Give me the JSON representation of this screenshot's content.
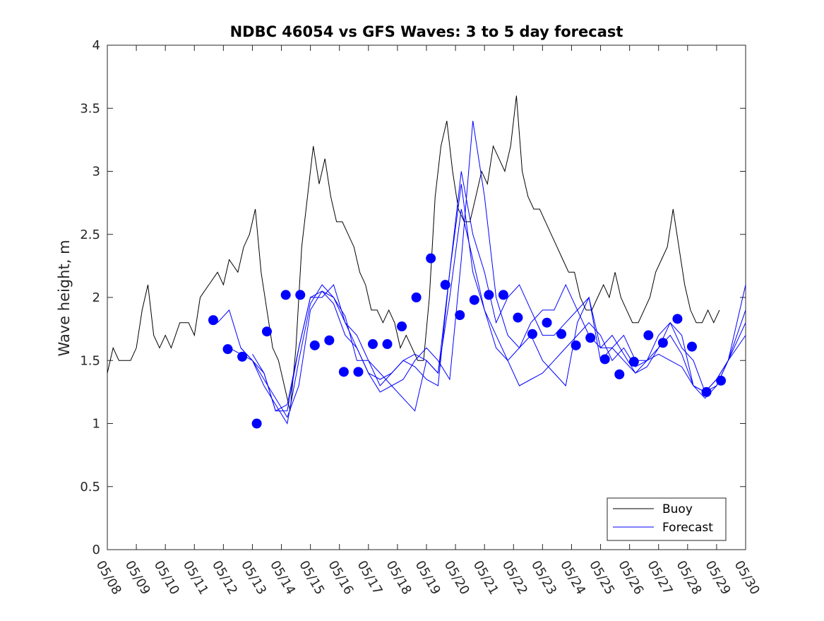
{
  "chart_data": {
    "type": "line",
    "title": "NDBC 46054 vs GFS Waves: 3 to 5 day forecast",
    "xlabel": "",
    "ylabel": "Wave height, m",
    "xlim": [
      0,
      22
    ],
    "ylim": [
      0,
      4
    ],
    "xticks": [
      "05/08",
      "05/09",
      "05/10",
      "05/11",
      "05/12",
      "05/13",
      "05/14",
      "05/15",
      "05/16",
      "05/17",
      "05/18",
      "05/19",
      "05/20",
      "05/21",
      "05/22",
      "05/23",
      "05/24",
      "05/25",
      "05/26",
      "05/27",
      "05/28",
      "05/29",
      "05/30"
    ],
    "yticks": [
      0,
      0.5,
      1,
      1.5,
      2,
      2.5,
      3,
      3.5,
      4
    ],
    "yticklabels": [
      "0",
      "0.5",
      "1",
      "1.5",
      "2",
      "2.5",
      "3",
      "3.5",
      "4"
    ],
    "grid": false,
    "legend_position": "bottom-right",
    "colors": {
      "buoy": "#000000",
      "forecast": "#0000ff"
    },
    "series": [
      {
        "name": "Buoy",
        "style": "line",
        "x": [
          0,
          0.2,
          0.4,
          0.6,
          0.8,
          1.0,
          1.2,
          1.4,
          1.6,
          1.8,
          2.0,
          2.2,
          2.5,
          2.8,
          3.0,
          3.2,
          3.5,
          3.8,
          4.0,
          4.2,
          4.5,
          4.7,
          4.9,
          5.1,
          5.3,
          5.5,
          5.7,
          5.9,
          6.1,
          6.3,
          6.5,
          6.7,
          6.9,
          7.1,
          7.3,
          7.5,
          7.7,
          7.9,
          8.1,
          8.3,
          8.5,
          8.7,
          8.9,
          9.1,
          9.3,
          9.5,
          9.7,
          9.9,
          10.1,
          10.3,
          10.5,
          10.7,
          10.9,
          11.1,
          11.3,
          11.5,
          11.7,
          11.9,
          12.1,
          12.3,
          12.5,
          12.7,
          12.9,
          13.1,
          13.3,
          13.5,
          13.7,
          13.9,
          14.1,
          14.3,
          14.5,
          14.7,
          14.9,
          15.1,
          15.3,
          15.5,
          15.7,
          15.9,
          16.1,
          16.3,
          16.5,
          16.7,
          16.9,
          17.1,
          17.3,
          17.5,
          17.7,
          17.9,
          18.1,
          18.3,
          18.5,
          18.7,
          18.9,
          19.1,
          19.3,
          19.5,
          19.7,
          19.9,
          20.1,
          20.3,
          20.5,
          20.7,
          20.9,
          21.1
        ],
        "values": [
          1.4,
          1.6,
          1.5,
          1.5,
          1.5,
          1.6,
          1.9,
          2.1,
          1.7,
          1.6,
          1.7,
          1.6,
          1.8,
          1.8,
          1.7,
          2.0,
          2.1,
          2.2,
          2.1,
          2.3,
          2.2,
          2.4,
          2.5,
          2.7,
          2.2,
          1.9,
          1.6,
          1.5,
          1.3,
          1.1,
          1.6,
          2.4,
          2.8,
          3.2,
          2.9,
          3.1,
          2.8,
          2.6,
          2.6,
          2.5,
          2.4,
          2.2,
          2.1,
          1.9,
          1.9,
          1.8,
          1.9,
          1.8,
          1.6,
          1.7,
          1.6,
          1.5,
          1.5,
          2.0,
          2.8,
          3.2,
          3.4,
          3.0,
          2.7,
          2.6,
          2.6,
          2.8,
          3.0,
          2.9,
          3.2,
          3.1,
          3.0,
          3.2,
          3.6,
          3.0,
          2.8,
          2.7,
          2.7,
          2.6,
          2.5,
          2.4,
          2.3,
          2.2,
          2.2,
          2.0,
          1.9,
          1.9,
          2.0,
          2.1,
          2.0,
          2.2,
          2.0,
          1.9,
          1.8,
          1.8,
          1.9,
          2.0,
          2.2,
          2.3,
          2.4,
          2.7,
          2.4,
          2.1,
          1.9,
          1.8,
          1.8,
          1.9,
          1.8,
          1.9
        ]
      },
      {
        "name": "Forecast",
        "style": "lines",
        "runs": [
          {
            "x": [
              3.8,
              4.2,
              4.6,
              5.0,
              5.4,
              5.8,
              6.2,
              6.6,
              7.0,
              7.4,
              7.8,
              8.2,
              8.6,
              9.0,
              9.4,
              9.8,
              10.2,
              10.6,
              11.0,
              11.4,
              11.8,
              12.2,
              12.6,
              13.0,
              13.4,
              13.8,
              14.2,
              14.6,
              15.0,
              15.4,
              15.8,
              16.2,
              16.6,
              17.0,
              17.4,
              17.8,
              18.2,
              18.6,
              19.0,
              19.4,
              19.8,
              20.2,
              20.6,
              21.0,
              21.4,
              22.0
            ],
            "values": [
              1.8,
              1.9,
              1.6,
              1.5,
              1.4,
              1.1,
              1.1,
              1.6,
              2.0,
              2.0,
              2.1,
              1.8,
              1.6,
              1.4,
              1.35,
              1.4,
              1.5,
              1.55,
              1.5,
              1.4,
              2.2,
              3.0,
              2.5,
              2.2,
              1.8,
              2.0,
              2.1,
              1.9,
              1.7,
              1.7,
              1.8,
              1.9,
              2.0,
              1.6,
              1.6,
              1.7,
              1.5,
              1.5,
              1.6,
              1.8,
              1.6,
              1.5,
              1.25,
              1.3,
              1.5,
              2.1
            ]
          },
          {
            "x": [
              4.2,
              4.6,
              5.0,
              5.4,
              5.8,
              6.2,
              6.6,
              7.0,
              7.4,
              7.8,
              8.2,
              8.6,
              9.0,
              9.4,
              9.8,
              10.2,
              10.6,
              11.0,
              11.4,
              11.8,
              12.2,
              12.6,
              13.0,
              13.4,
              13.8,
              14.2,
              14.6,
              15.0,
              15.4,
              15.8,
              16.2,
              16.6,
              17.0,
              17.4,
              17.8,
              18.2,
              18.6,
              19.0,
              19.4,
              19.8,
              20.2,
              20.6,
              21.0,
              21.4,
              22.0
            ],
            "values": [
              1.6,
              1.55,
              1.5,
              1.35,
              1.2,
              1.05,
              1.3,
              1.9,
              2.05,
              2.0,
              1.8,
              1.7,
              1.5,
              1.4,
              1.3,
              1.35,
              1.5,
              1.6,
              1.5,
              1.35,
              2.3,
              3.4,
              2.8,
              2.0,
              1.7,
              1.6,
              1.8,
              1.9,
              1.9,
              2.1,
              1.9,
              1.7,
              1.6,
              1.7,
              1.55,
              1.4,
              1.5,
              1.7,
              1.8,
              1.7,
              1.3,
              1.25,
              1.35,
              1.5,
              1.9
            ]
          },
          {
            "x": [
              4.6,
              5.0,
              5.4,
              5.8,
              6.2,
              6.6,
              7.0,
              7.4,
              7.8,
              8.2,
              8.6,
              9.0,
              9.4,
              9.8,
              10.2,
              10.6,
              11.0,
              11.4,
              11.8,
              12.2,
              12.6,
              13.0,
              13.4,
              13.8,
              14.2,
              14.6,
              15.0,
              15.4,
              15.8,
              16.2,
              16.6,
              17.0,
              17.4,
              17.8,
              18.2,
              18.6,
              19.0,
              19.4,
              19.8,
              20.2,
              20.6,
              21.0,
              21.4,
              22.0
            ],
            "values": [
              1.6,
              1.5,
              1.3,
              1.15,
              1.0,
              1.5,
              1.95,
              2.1,
              2.0,
              1.85,
              1.5,
              1.5,
              1.3,
              1.4,
              1.5,
              1.45,
              1.35,
              1.3,
              2.2,
              2.9,
              2.2,
              1.9,
              1.7,
              1.5,
              1.6,
              1.7,
              1.5,
              1.4,
              1.3,
              1.8,
              2.0,
              1.5,
              1.6,
              1.5,
              1.4,
              1.45,
              1.6,
              1.7,
              1.55,
              1.3,
              1.2,
              1.3,
              1.5,
              1.7
            ]
          },
          {
            "x": [
              5.0,
              5.4,
              5.8,
              6.2,
              6.6,
              7.0,
              7.4,
              7.8,
              8.2,
              8.6,
              9.0,
              9.4,
              9.8,
              10.2,
              10.6,
              11.0,
              11.4,
              11.8,
              12.2,
              12.6,
              13.0,
              13.4,
              13.8,
              14.2,
              14.6,
              15.0,
              15.4,
              15.8,
              16.2,
              16.6,
              17.0,
              17.4,
              17.8,
              18.2,
              18.6,
              19.0,
              19.4,
              19.8,
              20.2,
              20.6,
              21.0,
              21.4,
              22.0
            ],
            "values": [
              1.55,
              1.4,
              1.1,
              1.15,
              1.6,
              2.0,
              2.05,
              1.95,
              1.7,
              1.6,
              1.4,
              1.25,
              1.3,
              1.2,
              1.1,
              1.5,
              1.4,
              2.0,
              2.7,
              2.3,
              1.9,
              1.6,
              1.5,
              1.3,
              1.35,
              1.4,
              1.5,
              1.6,
              1.7,
              1.8,
              1.7,
              1.5,
              1.6,
              1.45,
              1.5,
              1.55,
              1.5,
              1.45,
              1.3,
              1.25,
              1.35,
              1.5,
              1.8
            ]
          }
        ]
      },
      {
        "name": "Forecast",
        "style": "markers",
        "x": [
          3.65,
          4.15,
          4.65,
          5.15,
          5.5,
          6.15,
          6.65,
          7.15,
          7.65,
          8.15,
          8.65,
          9.15,
          9.65,
          10.15,
          10.65,
          11.15,
          11.65,
          12.15,
          12.65,
          13.15,
          13.65,
          14.15,
          14.65,
          15.15,
          15.65,
          16.15,
          16.65,
          17.15,
          17.65,
          18.15,
          18.65,
          19.15,
          19.65,
          20.15,
          20.65,
          21.15
        ],
        "values": [
          1.82,
          1.59,
          1.53,
          1.0,
          1.73,
          2.02,
          2.02,
          1.62,
          1.66,
          1.41,
          1.41,
          1.63,
          1.63,
          1.77,
          2.0,
          2.31,
          2.1,
          1.86,
          1.98,
          2.02,
          2.02,
          1.84,
          1.71,
          1.8,
          1.71,
          1.62,
          1.68,
          1.51,
          1.39,
          1.49,
          1.7,
          1.64,
          1.83,
          1.61,
          1.25,
          1.34
        ]
      }
    ]
  },
  "legend": [
    {
      "label": "Buoy",
      "color": "#000000"
    },
    {
      "label": "Forecast",
      "color": "#0000ff"
    }
  ]
}
